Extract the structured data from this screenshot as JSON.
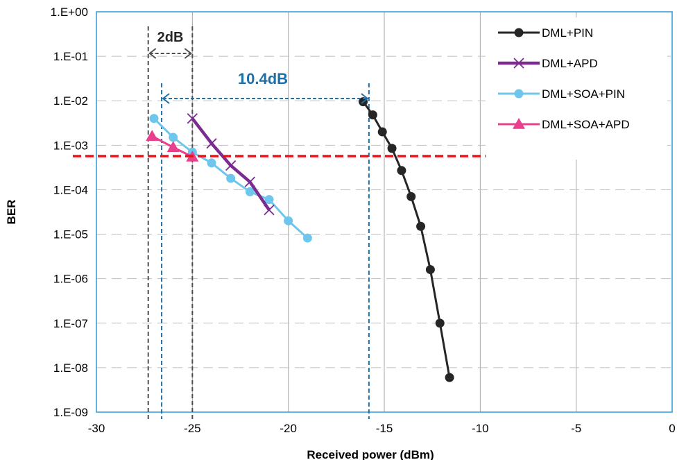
{
  "chart_data": {
    "type": "line",
    "xlabel": "Received power (dBm)",
    "ylabel": "BER",
    "xlim": [
      -30,
      0
    ],
    "ylim_log10": [
      -9,
      0
    ],
    "y_scale": "log",
    "x_ticks": [
      "-30",
      "-25",
      "-20",
      "-15",
      "-10",
      "-5",
      "0"
    ],
    "y_ticks": [
      "1.E+00",
      "1.E-01",
      "1.E-02",
      "1.E-03",
      "1.E-04",
      "1.E-05",
      "1.E-06",
      "1.E-07",
      "1.E-08",
      "1.E-09"
    ],
    "grid": {
      "vertical": "solid",
      "horizontal": "dashed"
    },
    "legend_position": "top-right",
    "series": [
      {
        "name": "DML+PIN",
        "color": "#262626",
        "marker": "circle",
        "x": [
          -16.1,
          -15.6,
          -15.1,
          -14.6,
          -14.1,
          -13.6,
          -13.1,
          -12.6,
          -12.1,
          -11.6
        ],
        "y": [
          0.0095,
          0.0048,
          0.002,
          0.00085,
          0.00027,
          7e-05,
          1.5e-05,
          1.6e-06,
          1e-07,
          6e-09
        ]
      },
      {
        "name": "DML+APD",
        "color": "#7a2c8f",
        "marker": "x",
        "x": [
          -25,
          -24,
          -23,
          -22,
          -21
        ],
        "y": [
          0.004,
          0.0011,
          0.00035,
          0.00015,
          3.5e-05
        ]
      },
      {
        "name": "DML+SOA+PIN",
        "color": "#6ec6ec",
        "marker": "circle",
        "x": [
          -27,
          -26,
          -25,
          -24,
          -23,
          -22,
          -21,
          -20,
          -19
        ],
        "y": [
          0.004,
          0.0015,
          0.0007,
          0.0004,
          0.00018,
          9e-05,
          6e-05,
          2e-05,
          8.2e-06
        ]
      },
      {
        "name": "DML+SOA+APD",
        "color": "#e8408c",
        "marker": "triangle",
        "x": [
          -27.1,
          -26,
          -25
        ],
        "y": [
          0.0016,
          0.0009,
          0.00055
        ]
      }
    ],
    "threshold": {
      "y": 0.00057,
      "color": "#e8141a"
    },
    "annotations": [
      {
        "text": "2dB",
        "from_x": -27.3,
        "to_x": -25.0,
        "color": "#505050"
      },
      {
        "text": "10.4dB",
        "from_x": -26.6,
        "to_x": -15.8,
        "color": "#1f6fa8"
      }
    ]
  }
}
